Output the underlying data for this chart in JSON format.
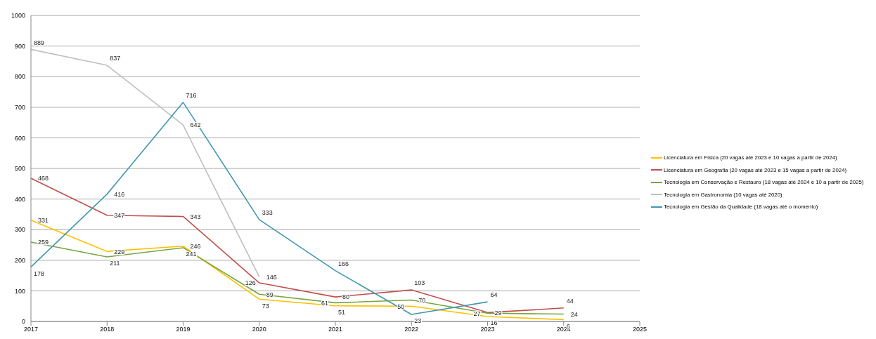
{
  "chart_data": {
    "type": "line",
    "categories": [
      "2017",
      "2018",
      "2019",
      "2020",
      "2021",
      "2022",
      "2023",
      "2024",
      "2025"
    ],
    "series": [
      {
        "name": "Licenciatura em Física (20 vagas até 2023 e 10 vagas a partir de 2024)",
        "color": "#ffc000",
        "values": [
          331,
          229,
          246,
          73,
          51,
          50,
          16,
          6,
          null
        ]
      },
      {
        "name": "Licenciatura em Geografia (20 vagas até 2023 e 15 vagas a partir de 2024)",
        "color": "#c0504d",
        "values": [
          468,
          347,
          343,
          126,
          80,
          103,
          29,
          44,
          null
        ]
      },
      {
        "name": "Tecnologia em Conservação e Restauro (18 vagas até 2024 e 10 a partir de 2025)",
        "color": "#77a541",
        "values": [
          259,
          211,
          241,
          89,
          61,
          70,
          27,
          24,
          null
        ]
      },
      {
        "name": "Tecnologia em Gastronomia (10 vagas até 2020)",
        "color": "#bfbfbf",
        "values": [
          889,
          837,
          642,
          146,
          null,
          null,
          null,
          null,
          null
        ]
      },
      {
        "name": "Tecnologia em Gestão da Qualidade (18 vagas até o momento)",
        "color": "#4198af",
        "values": [
          178,
          416,
          716,
          333,
          166,
          23,
          64,
          null,
          null
        ]
      }
    ],
    "ylim": [
      0,
      1000
    ],
    "yticks": [
      0,
      100,
      200,
      300,
      400,
      500,
      600,
      700,
      800,
      900,
      1000
    ],
    "grid": "y",
    "legend": "right",
    "data_labels": true,
    "marker": "none"
  }
}
